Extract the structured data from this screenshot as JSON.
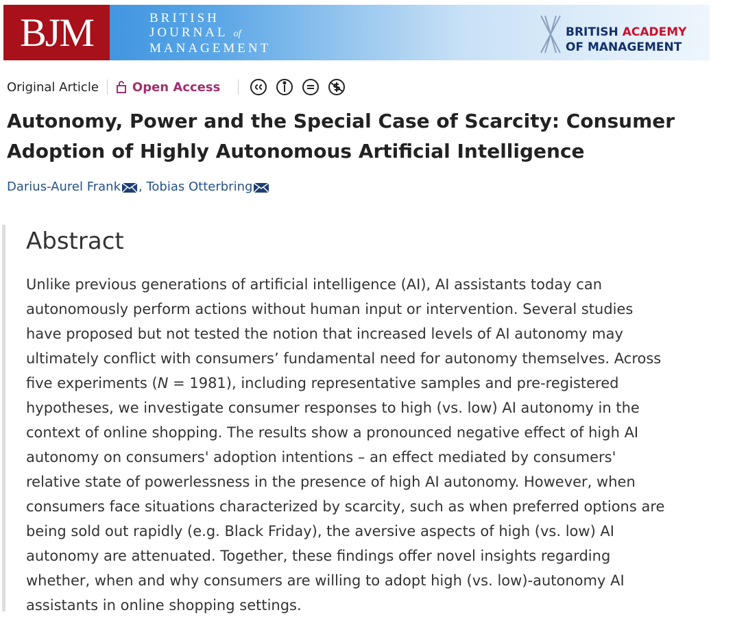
{
  "header": {
    "logo": "BJM",
    "journal": {
      "line1": "BRITISH",
      "line2": "JOURNAL",
      "line2_small": "of",
      "line3": "MANAGEMENT"
    },
    "academy": {
      "word1": "BRITISH",
      "word2": "ACADEMY",
      "line2": "OF MANAGEMENT"
    }
  },
  "article": {
    "type": "Original Article",
    "access": "Open Access",
    "title_lines": [
      "Autonomy, Power and the Special Case of Scarcity: Consumer",
      "Adoption of Highly Autonomous Artificial Intelligence"
    ],
    "authors": [
      "Darius-Aurel Frank",
      "Tobias Otterbring"
    ],
    "author_separator": ","
  },
  "abstract": {
    "heading": "Abstract",
    "lines": [
      [
        "Unlike previous generations of artificial intelligence (AI), AI assistants today can"
      ],
      [
        "autonomously perform actions without human input or intervention. Several studies"
      ],
      [
        "have proposed but not tested the notion that increased levels of AI autonomy may"
      ],
      [
        "ultimately conflict with consumers’ fundamental need for autonomy themselves. Across"
      ],
      [
        "five experiments (",
        "N",
        " = 1981), including representative samples and pre-registered"
      ],
      [
        "hypotheses, we investigate consumer responses to high (vs. low) AI autonomy in the"
      ],
      [
        "context of online shopping. The results show a pronounced negative effect of high AI"
      ],
      [
        "autonomy on consumers' adoption intentions – an effect mediated by consumers'"
      ],
      [
        "relative state of powerlessness in the presence of high AI autonomy. However, when"
      ],
      [
        "consumers face situations characterized by scarcity, such as when preferred options are"
      ],
      [
        "being sold out rapidly (e.g. Black Friday), the aversive aspects of high (vs. low) AI"
      ],
      [
        "autonomy are attenuated. Together, these findings offer novel insights regarding"
      ],
      [
        "whether, when and why consumers are willing to adopt high (vs. low)-autonomy AI"
      ],
      [
        "assistants in online shopping settings."
      ]
    ]
  }
}
